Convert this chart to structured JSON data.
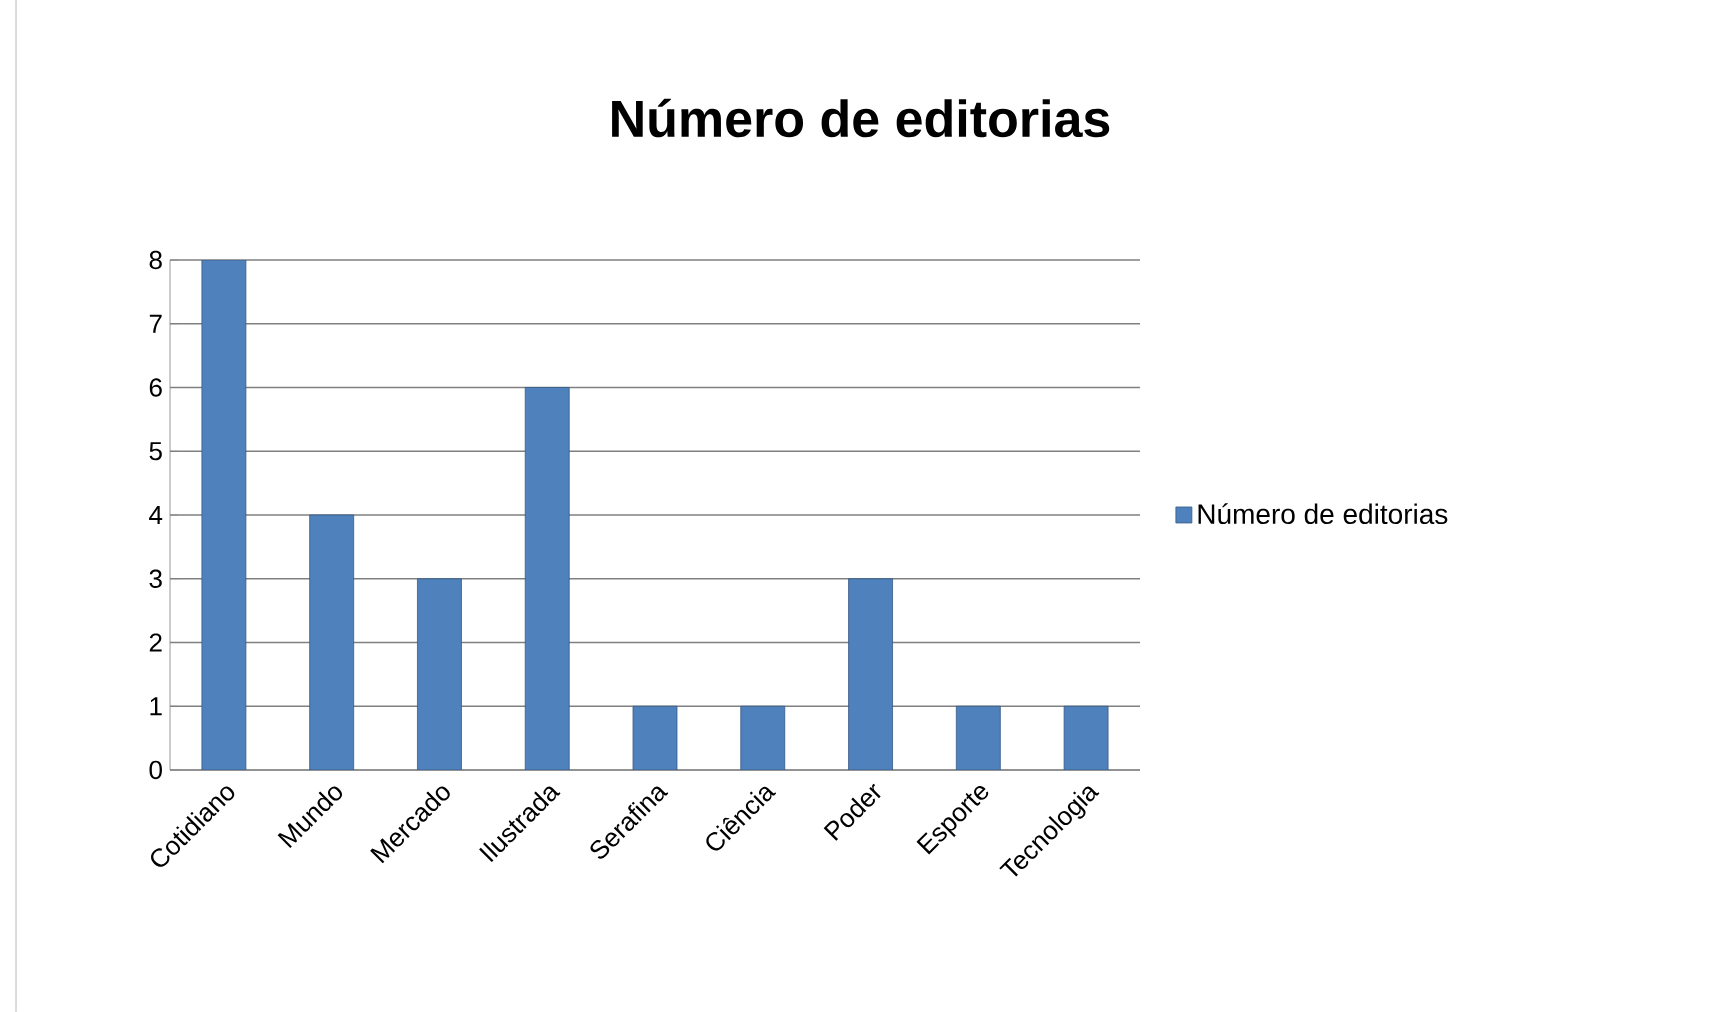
{
  "chart_data": {
    "type": "bar",
    "title": "Número de editorias",
    "categories": [
      "Cotidiano",
      "Mundo",
      "Mercado",
      "Ilustrada",
      "Serafina",
      "Ciência",
      "Poder",
      "Esporte",
      "Tecnologia"
    ],
    "series": [
      {
        "name": "Número de editorias",
        "color": "#4f81bd",
        "values": [
          8,
          4,
          3,
          6,
          1,
          1,
          3,
          1,
          1
        ]
      }
    ],
    "ylim": [
      0,
      8
    ],
    "yticks": [
      0,
      1,
      2,
      3,
      4,
      5,
      6,
      7,
      8
    ],
    "grid": "y",
    "legend": "right"
  }
}
